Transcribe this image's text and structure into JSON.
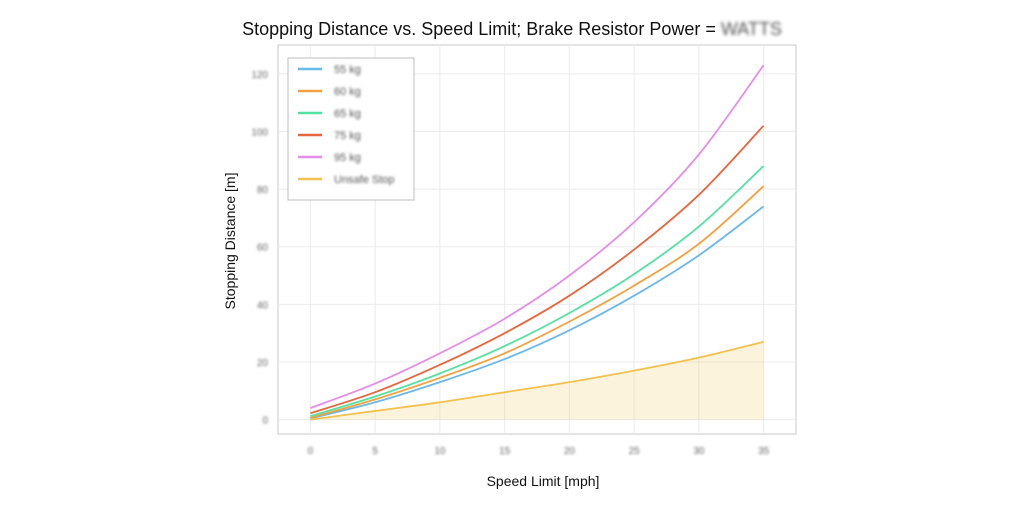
{
  "chart_data": {
    "type": "line",
    "title_prefix": "Stopping Distance vs. Speed Limit; Brake Resistor Power = ",
    "title_value": "WATTS",
    "xlabel": "Speed Limit [mph]",
    "ylabel": "Stopping Distance [m]",
    "x_ticks": [
      0,
      5,
      10,
      15,
      20,
      25,
      30,
      35
    ],
    "y_ticks": [
      0,
      20,
      40,
      60,
      80,
      100,
      120
    ],
    "xlim": [
      -2.5,
      37.5
    ],
    "ylim": [
      -5,
      130
    ],
    "grid": true,
    "legend_position": "top-left",
    "x": [
      0,
      5,
      10,
      15,
      20,
      25,
      30,
      35
    ],
    "series": [
      {
        "name": "55 kg",
        "color": "#6bb8ea",
        "values": [
          0.4,
          6,
          13,
          21,
          31,
          43,
          57,
          74
        ]
      },
      {
        "name": "60 kg",
        "color": "#f2a13f",
        "values": [
          0.6,
          7,
          14.5,
          23,
          34,
          46.5,
          61,
          81
        ]
      },
      {
        "name": "65 kg",
        "color": "#52e3a0",
        "values": [
          1.2,
          8,
          16,
          25.5,
          37,
          50.5,
          67,
          88
        ]
      },
      {
        "name": "75 kg",
        "color": "#e8663d",
        "values": [
          2.2,
          9.5,
          19,
          30,
          43,
          59,
          78,
          102
        ]
      },
      {
        "name": "95 kg",
        "color": "#e58de8",
        "values": [
          4,
          12.5,
          23,
          35,
          50,
          68.5,
          92,
          123
        ]
      },
      {
        "name": "Unsafe Stop",
        "color": "#f2c14e",
        "values": [
          0,
          3,
          6,
          9.5,
          13,
          17,
          21.5,
          27
        ],
        "fill": true
      }
    ]
  }
}
